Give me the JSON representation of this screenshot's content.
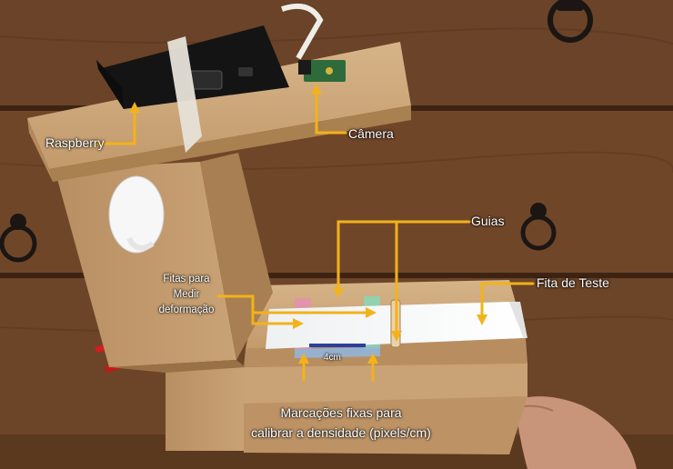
{
  "labels": {
    "raspberry": "Raspberry",
    "camera": "Câmera",
    "guides": "Guias",
    "test_strip": "Fita de Teste",
    "tapes_line1": "Fitas para",
    "tapes_line2": "Medir",
    "tapes_line3": "deformação",
    "scale": "4cm",
    "marks_line1": "Marcações fixas para",
    "marks_line2": "calibrar a densidade (pixels/cm)"
  },
  "colors": {
    "arrow": "#f2b21a",
    "label_text": "#ffffff",
    "mdf": "#c9a275",
    "drawer_wood": "#6b4328"
  },
  "icons": [
    "raspberry-pi-case-icon",
    "camera-module-icon",
    "wall-hook-icon",
    "drawer-pull-ring-icon",
    "hand-icon",
    "red-clip-icon"
  ]
}
